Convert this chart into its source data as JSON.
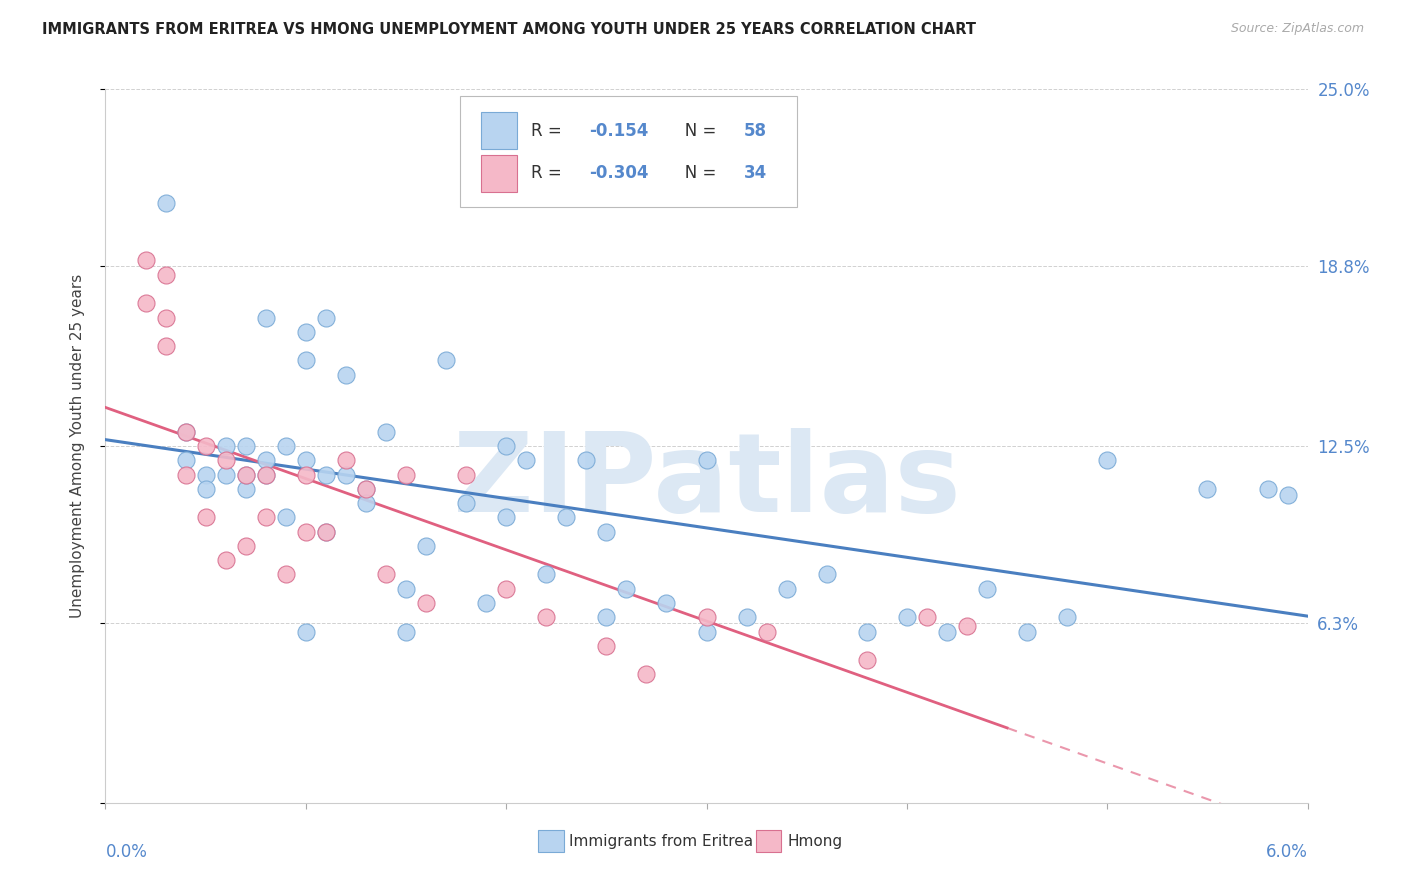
{
  "title": "IMMIGRANTS FROM ERITREA VS HMONG UNEMPLOYMENT AMONG YOUTH UNDER 25 YEARS CORRELATION CHART",
  "source": "Source: ZipAtlas.com",
  "ylabel": "Unemployment Among Youth under 25 years",
  "xlim": [
    0.0,
    0.06
  ],
  "ylim": [
    0.0,
    0.25
  ],
  "right_ytick_vals": [
    0.0,
    0.063,
    0.125,
    0.188,
    0.25
  ],
  "right_yticklabels": [
    "",
    "6.3%",
    "12.5%",
    "18.8%",
    "25.0%"
  ],
  "series1_name": "Immigrants from Eritrea",
  "series1_R": -0.154,
  "series1_N": 58,
  "series1_color": "#b8d4f0",
  "series1_edge": "#7aaad6",
  "series2_name": "Hmong",
  "series2_R": -0.304,
  "series2_N": 34,
  "series2_color": "#f5b8c8",
  "series2_edge": "#d87090",
  "trend1_color": "#4a7fc0",
  "trend2_color": "#e06080",
  "watermark": "ZIPatlas",
  "watermark_color": "#dce8f4",
  "title_color": "#222222",
  "source_color": "#aaaaaa",
  "label_color": "#5588cc",
  "ylabel_color": "#444444",
  "legend_text_color": "#333333",
  "eritrea_x": [
    0.003,
    0.004,
    0.004,
    0.005,
    0.005,
    0.006,
    0.006,
    0.007,
    0.007,
    0.007,
    0.008,
    0.008,
    0.008,
    0.009,
    0.009,
    0.01,
    0.01,
    0.01,
    0.011,
    0.011,
    0.011,
    0.012,
    0.012,
    0.013,
    0.013,
    0.014,
    0.015,
    0.016,
    0.017,
    0.018,
    0.019,
    0.02,
    0.021,
    0.022,
    0.023,
    0.024,
    0.025,
    0.026,
    0.028,
    0.03,
    0.032,
    0.034,
    0.036,
    0.038,
    0.04,
    0.042,
    0.044,
    0.046,
    0.048,
    0.01,
    0.015,
    0.02,
    0.025,
    0.03,
    0.05,
    0.055,
    0.058,
    0.059
  ],
  "eritrea_y": [
    0.21,
    0.12,
    0.13,
    0.115,
    0.11,
    0.115,
    0.125,
    0.11,
    0.115,
    0.125,
    0.115,
    0.12,
    0.17,
    0.125,
    0.1,
    0.165,
    0.155,
    0.12,
    0.17,
    0.115,
    0.095,
    0.15,
    0.115,
    0.11,
    0.105,
    0.13,
    0.06,
    0.09,
    0.155,
    0.105,
    0.07,
    0.125,
    0.12,
    0.08,
    0.1,
    0.12,
    0.095,
    0.075,
    0.07,
    0.12,
    0.065,
    0.075,
    0.08,
    0.06,
    0.065,
    0.06,
    0.075,
    0.06,
    0.065,
    0.06,
    0.075,
    0.1,
    0.065,
    0.06,
    0.12,
    0.11,
    0.11,
    0.108
  ],
  "hmong_x": [
    0.002,
    0.002,
    0.003,
    0.003,
    0.003,
    0.004,
    0.004,
    0.005,
    0.005,
    0.006,
    0.006,
    0.007,
    0.007,
    0.008,
    0.008,
    0.009,
    0.01,
    0.01,
    0.011,
    0.012,
    0.013,
    0.014,
    0.015,
    0.016,
    0.018,
    0.02,
    0.022,
    0.025,
    0.027,
    0.03,
    0.033,
    0.038,
    0.041,
    0.043
  ],
  "hmong_y": [
    0.19,
    0.175,
    0.17,
    0.185,
    0.16,
    0.13,
    0.115,
    0.125,
    0.1,
    0.12,
    0.085,
    0.09,
    0.115,
    0.1,
    0.115,
    0.08,
    0.115,
    0.095,
    0.095,
    0.12,
    0.11,
    0.08,
    0.115,
    0.07,
    0.115,
    0.075,
    0.065,
    0.055,
    0.045,
    0.065,
    0.06,
    0.05,
    0.065,
    0.062
  ]
}
